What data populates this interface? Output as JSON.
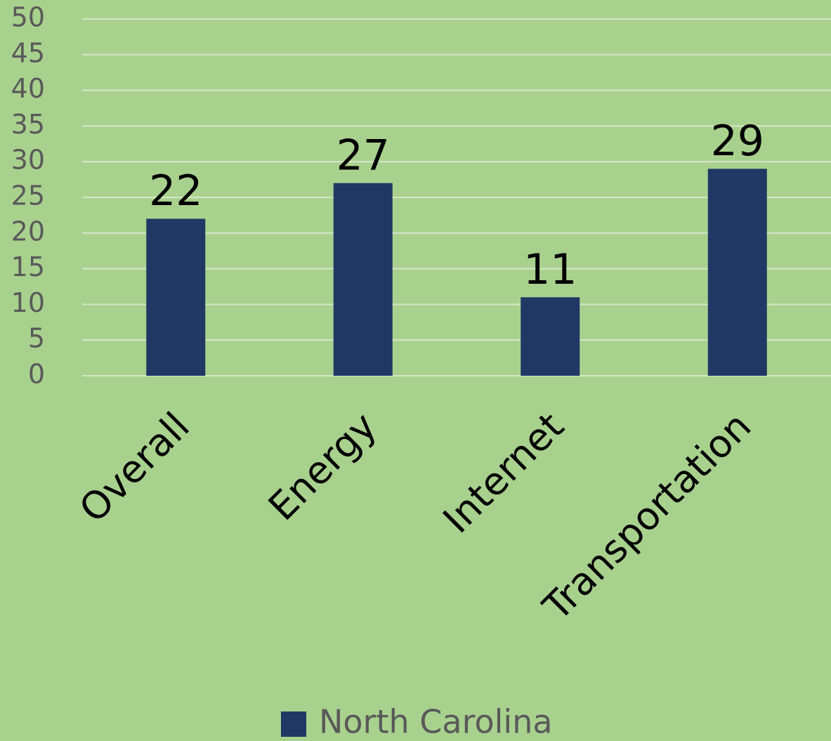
{
  "chart_data": {
    "type": "bar",
    "categories": [
      "Overall",
      "Energy",
      "Internet",
      "Transportation"
    ],
    "series": [
      {
        "name": "North Carolina",
        "color": "#203864",
        "values": [
          22,
          27,
          11,
          29
        ]
      }
    ],
    "ylim": [
      0,
      50
    ],
    "yticks": [
      0,
      5,
      10,
      15,
      20,
      25,
      30,
      35,
      40,
      45,
      50
    ],
    "grid": true,
    "legend": "bottom"
  }
}
